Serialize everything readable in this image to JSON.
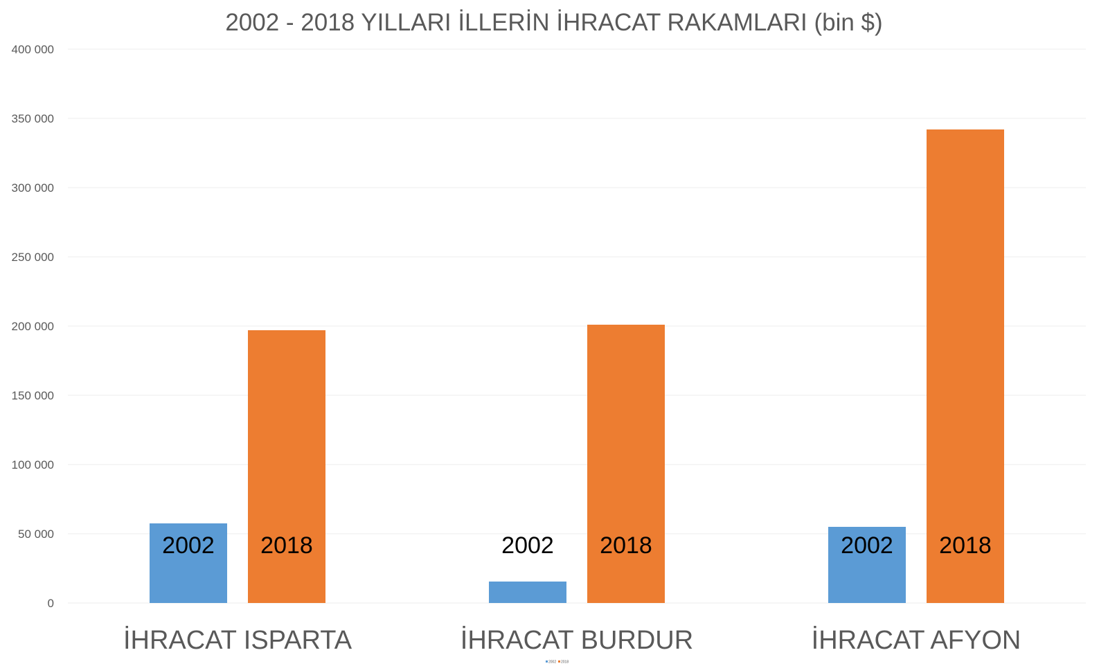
{
  "chart_data": {
    "type": "bar",
    "title": "2002 - 2018 YILLARI İLLERİN İHRACAT RAKAMLARI (bin $)",
    "categories": [
      "İHRACAT ISPARTA",
      "İHRACAT BURDUR",
      "İHRACAT AFYON"
    ],
    "series": [
      {
        "name": "2002",
        "color": "#5B9BD5",
        "values": [
          57500,
          15500,
          55000
        ]
      },
      {
        "name": "2018",
        "color": "#ED7D31",
        "values": [
          197000,
          201000,
          342000
        ]
      }
    ],
    "ylim": [
      0,
      400000
    ],
    "y_ticks": [
      0,
      50000,
      100000,
      150000,
      200000,
      250000,
      300000,
      350000,
      400000
    ],
    "y_tick_labels": [
      "0",
      "50 000",
      "100 000",
      "150 000",
      "200 000",
      "250 000",
      "300 000",
      "350 000",
      "400 000"
    ],
    "xlabel": "",
    "ylabel": "",
    "grid": true,
    "legend": "bottom"
  }
}
